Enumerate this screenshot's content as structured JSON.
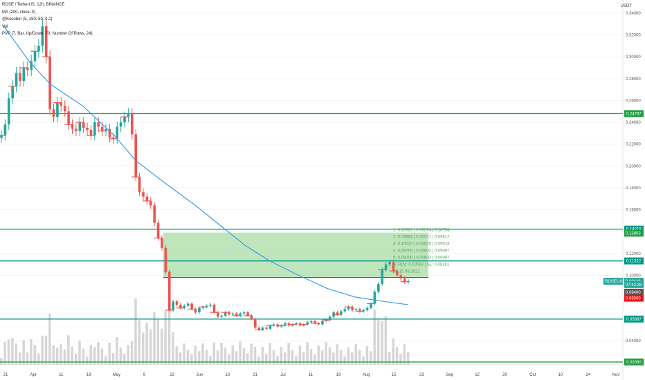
{
  "legend": {
    "symbol": "ROSE / TetherUS, 12h, BINANCE",
    "ma": "MA (200, close, 0)",
    "kosobor": "@Kosobor (5, 150, 50, 0.2)",
    "vol": "Vol",
    "pvp": "PVP (7, Bar, Up/Down, 70, Number Of Rows, 24)"
  },
  "currency": "USDT",
  "colors": {
    "up": "#26a69a",
    "down": "#ef5350",
    "ma_line": "#3d9be9",
    "level_line": "#20a040",
    "channel_line": "#009988",
    "zone_fill": "#a9dca6",
    "volume": "#d6d6d6",
    "price_tag": "#26a69a",
    "red_tag": "#ef1010",
    "dark_tag": "#555555"
  },
  "chart_data": {
    "type": "candlestick",
    "y_axis_ticks": [
      "0.34000",
      "0.32000",
      "0.30000",
      "0.28000",
      "0.26000",
      "0.24000",
      "0.22000",
      "0.20000",
      "0.18000",
      "0.16000",
      "0.14000",
      "0.12000",
      "0.10000",
      "0.08000",
      "0.06000",
      "0.04000"
    ],
    "ylim": [
      0.018,
      0.352
    ],
    "x_axis_ticks": [
      "21",
      "Apr",
      "11",
      "19",
      "May",
      "9",
      "23",
      "Jun",
      "13",
      "21",
      "Jul",
      "11",
      "19",
      "Aug",
      "15",
      "23",
      "Sep",
      "12",
      "20",
      "Oct",
      "10",
      "24",
      "Nov"
    ],
    "horizontal_levels": [
      {
        "value": 0.24797,
        "label": "0.24797",
        "kind": "level"
      },
      {
        "value": 0.14219,
        "label": "0.14219",
        "kind": "channel"
      },
      {
        "value": 0.11312,
        "label": "0.11312",
        "kind": "channel"
      },
      {
        "value": 0.05987,
        "label": "0.05987",
        "kind": "channel"
      },
      {
        "value": 0.0206,
        "label": "0.02060",
        "kind": "level"
      }
    ],
    "price_tags": [
      {
        "label": "0.13853",
        "value": 0.13853,
        "kind": "level"
      },
      {
        "label": "ROSEUSDT",
        "value": 0.09448,
        "kind": "symbol"
      },
      {
        "label": "0.09448",
        "value": 0.09448,
        "kind": "price"
      },
      {
        "label": "07:42:38",
        "value": 0.0915,
        "kind": "price"
      },
      {
        "label": "0.08400",
        "value": 0.0845,
        "kind": "dark"
      },
      {
        "label": "0.08300",
        "value": 0.079,
        "kind": "red"
      }
    ],
    "zone": {
      "top": 0.139,
      "bottom": 0.098
    },
    "pvp_rows": [
      "1:   0.10328  |   0.00574  |   0.28754",
      "2:   0.09883  |   0.00571  |   0.09612",
      "3:   0.10020  |   0.00625  |   0.09518",
      "4:   0.09700  |   0.00603  |   0.09097",
      "5:   0.09700  |   0.00603  |   0.09097",
      "ATR(5):  0.00533  |  SL:  0.09161",
      "for 15.08.2022"
    ],
    "close_points": [
      0.228,
      0.238,
      0.262,
      0.273,
      0.285,
      0.278,
      0.29,
      0.288,
      0.296,
      0.305,
      0.31,
      0.328,
      0.3,
      0.252,
      0.245,
      0.258,
      0.255,
      0.25,
      0.238,
      0.234,
      0.232,
      0.24,
      0.235,
      0.233,
      0.228,
      0.24,
      0.236,
      0.232,
      0.234,
      0.226,
      0.225,
      0.236,
      0.24,
      0.245,
      0.248,
      0.229,
      0.19,
      0.176,
      0.172,
      0.168,
      0.164,
      0.148,
      0.134,
      0.125,
      0.103,
      0.068,
      0.076,
      0.073,
      0.07,
      0.072,
      0.074,
      0.069,
      0.066,
      0.07,
      0.071,
      0.072,
      0.073,
      0.066,
      0.062,
      0.063,
      0.066,
      0.064,
      0.065,
      0.063,
      0.065,
      0.066,
      0.063,
      0.06,
      0.052,
      0.05,
      0.052,
      0.051,
      0.054,
      0.055,
      0.053,
      0.054,
      0.056,
      0.054,
      0.055,
      0.056,
      0.054,
      0.055,
      0.057,
      0.058,
      0.056,
      0.055,
      0.058,
      0.059,
      0.062,
      0.066,
      0.064,
      0.067,
      0.069,
      0.071,
      0.068,
      0.069,
      0.067,
      0.068,
      0.07,
      0.074,
      0.085,
      0.092,
      0.105,
      0.11,
      0.112,
      0.104,
      0.1,
      0.097,
      0.094,
      0.0945
    ],
    "ma_points": [
      [
        0.005,
        0.3285
      ],
      [
        0.07,
        0.295
      ],
      [
        0.12,
        0.275
      ],
      [
        0.2,
        0.255
      ],
      [
        0.28,
        0.227
      ],
      [
        0.33,
        0.205
      ],
      [
        0.4,
        0.185
      ],
      [
        0.48,
        0.163
      ],
      [
        0.55,
        0.142
      ],
      [
        0.6,
        0.127
      ],
      [
        0.66,
        0.113
      ],
      [
        0.73,
        0.1
      ],
      [
        0.8,
        0.088
      ],
      [
        0.87,
        0.08
      ],
      [
        0.94,
        0.076
      ],
      [
        1.0,
        0.073
      ]
    ]
  }
}
